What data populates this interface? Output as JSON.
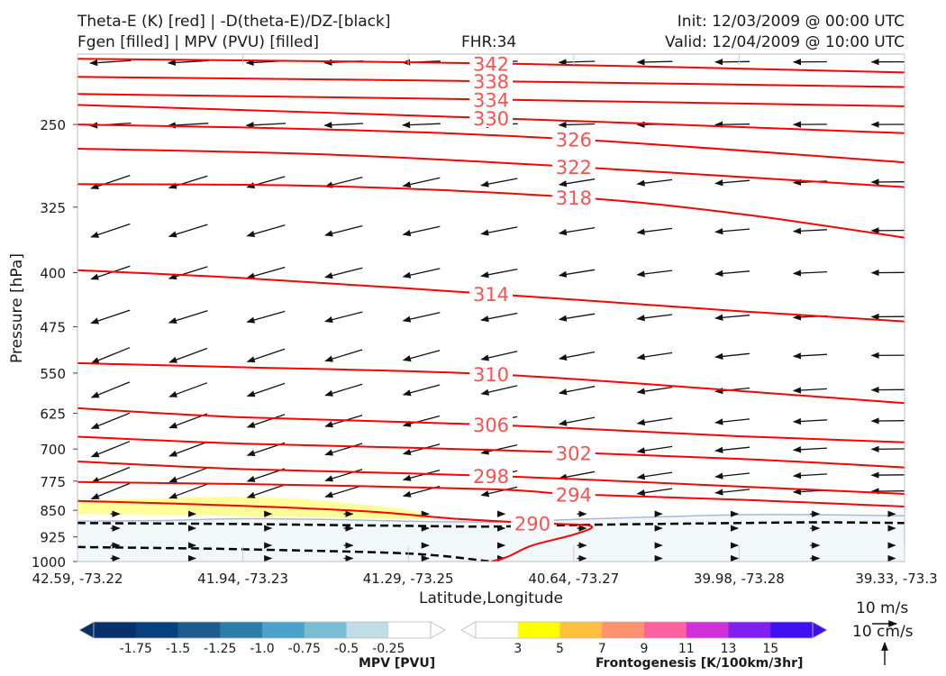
{
  "header": {
    "line1_left": "Theta-E (K) [red] | -D(theta-E)/DZ-[black]",
    "line2_left": "Fgen [filled] | MPV (PVU) [filled]",
    "fhr": "FHR:34",
    "init": "Init: 12/03/2009 @ 00:00 UTC",
    "valid": "Valid: 12/04/2009 @ 10:00 UTC"
  },
  "chart_data": {
    "type": "cross-section",
    "xlabel": "Latitude,Longitude",
    "ylabel": "Pressure [hPa]",
    "y_scale": "log-pressure",
    "ylim": [
      1000,
      200
    ],
    "x_ticks": [
      "42.59, -73.22",
      "41.94, -73.23",
      "41.29, -73.25",
      "40.64, -73.27",
      "39.98, -73.28",
      "39.33, -73.3"
    ],
    "y_ticks": [
      250,
      325,
      400,
      475,
      550,
      625,
      700,
      775,
      850,
      925,
      1000
    ],
    "theta_e_color": "#ff0000",
    "theta_e_contours": [
      {
        "value": "342",
        "pts": [
          [
            0,
            203
          ],
          [
            0.5,
            206
          ],
          [
            1,
            212
          ]
        ],
        "label_x": 0.5
      },
      {
        "value": "338",
        "pts": [
          [
            0,
            215
          ],
          [
            0.5,
            218
          ],
          [
            1,
            222
          ]
        ],
        "label_x": 0.5
      },
      {
        "value": "334",
        "pts": [
          [
            0,
            227
          ],
          [
            0.5,
            231
          ],
          [
            1,
            236
          ]
        ],
        "label_x": 0.5
      },
      {
        "value": "330",
        "pts": [
          [
            0,
            235
          ],
          [
            0.5,
            245
          ],
          [
            1,
            257
          ]
        ],
        "label_x": 0.5
      },
      {
        "value": "326",
        "pts": [
          [
            0,
            250
          ],
          [
            0.3,
            254
          ],
          [
            0.6,
            262
          ],
          [
            1,
            282
          ]
        ],
        "label_x": 0.6
      },
      {
        "value": "322",
        "pts": [
          [
            0,
            270
          ],
          [
            0.3,
            275
          ],
          [
            0.6,
            286
          ],
          [
            1,
            305
          ]
        ],
        "label_x": 0.6
      },
      {
        "value": "318",
        "pts": [
          [
            0,
            302
          ],
          [
            0.3,
            304
          ],
          [
            0.6,
            315
          ],
          [
            0.8,
            332
          ],
          [
            1,
            358
          ]
        ],
        "label_x": 0.6
      },
      {
        "value": "314",
        "pts": [
          [
            0,
            397
          ],
          [
            0.2,
            407
          ],
          [
            0.5,
            428
          ],
          [
            0.8,
            452
          ],
          [
            1,
            467
          ]
        ],
        "label_x": 0.5
      },
      {
        "value": "310",
        "pts": [
          [
            0,
            533
          ],
          [
            0.2,
            540
          ],
          [
            0.5,
            552
          ],
          [
            0.8,
            582
          ],
          [
            1,
            605
          ]
        ],
        "label_x": 0.5
      },
      {
        "value": "306",
        "pts": [
          [
            0,
            615
          ],
          [
            0.2,
            633
          ],
          [
            0.5,
            648
          ],
          [
            0.8,
            672
          ],
          [
            1,
            685
          ]
        ],
        "label_x": 0.5
      },
      {
        "value": "302",
        "pts": [
          [
            0,
            673
          ],
          [
            0.2,
            688
          ],
          [
            0.5,
            702
          ],
          [
            0.8,
            722
          ],
          [
            1,
            742
          ]
        ],
        "label_x": 0.6
      },
      {
        "value": "298",
        "pts": [
          [
            0,
            728
          ],
          [
            0.2,
            746
          ],
          [
            0.5,
            762
          ],
          [
            0.8,
            788
          ],
          [
            1,
            807
          ]
        ],
        "label_x": 0.5
      },
      {
        "value": "294",
        "pts": [
          [
            0,
            777
          ],
          [
            0.2,
            782
          ],
          [
            0.5,
            795
          ],
          [
            0.6,
            808
          ],
          [
            0.8,
            822
          ],
          [
            1,
            840
          ]
        ],
        "label_x": 0.6
      },
      {
        "value": "290",
        "pts": [
          [
            0,
            825
          ],
          [
            0.2,
            838
          ],
          [
            0.35,
            853
          ],
          [
            0.45,
            872
          ],
          [
            0.55,
            885
          ],
          [
            0.62,
            893
          ],
          [
            0.6,
            918
          ],
          [
            0.55,
            950
          ],
          [
            0.52,
            985
          ],
          [
            0.5,
            1000
          ]
        ],
        "label_x": 0.55
      }
    ],
    "stability_dashed_color": "#000000",
    "stability_dashed_contours": [
      [
        [
          0,
          885
        ],
        [
          0.2,
          888
        ],
        [
          0.4,
          893
        ],
        [
          0.5,
          895
        ],
        [
          0.62,
          890
        ],
        [
          0.8,
          885
        ],
        [
          0.9,
          883
        ],
        [
          1,
          885
        ]
      ],
      [
        [
          0,
          955
        ],
        [
          0.1,
          958
        ],
        [
          0.2,
          962
        ],
        [
          0.4,
          975
        ],
        [
          0.5,
          1000
        ]
      ]
    ],
    "mpv_shading": {
      "color": "#f2f8fa",
      "boundary_color": "#a8b8d6",
      "boundary": [
        [
          0,
          880
        ],
        [
          0.1,
          878
        ],
        [
          0.2,
          873
        ],
        [
          0.3,
          875
        ],
        [
          0.4,
          880
        ],
        [
          0.5,
          882
        ],
        [
          0.6,
          875
        ],
        [
          0.7,
          868
        ],
        [
          0.8,
          862
        ],
        [
          0.9,
          862
        ],
        [
          1,
          865
        ]
      ]
    },
    "fgen_shading": {
      "color": "#ffff99",
      "value_range": "3-5",
      "outline": [
        [
          0,
          825
        ],
        [
          0.1,
          818
        ],
        [
          0.2,
          815
        ],
        [
          0.3,
          825
        ],
        [
          0.4,
          850
        ],
        [
          0.42,
          873
        ],
        [
          0.3,
          870
        ],
        [
          0.1,
          862
        ],
        [
          0,
          860
        ]
      ]
    },
    "colorbar_mpv": {
      "label": "MPV [PVU]",
      "tick_labels": [
        "-1.75",
        "-1.5",
        "-1.25",
        "-1.0",
        "-0.75",
        "-0.5",
        "-0.25"
      ],
      "colors": [
        "#08306b",
        "#08417e",
        "#1f5b8c",
        "#2b7fa6",
        "#4aa3c7",
        "#7bbcd3",
        "#c0dde6",
        "#ffffff"
      ]
    },
    "colorbar_fgen": {
      "label": "Frontogenesis [K/100km/3hr]",
      "tick_labels": [
        "3",
        "5",
        "7",
        "9",
        "11",
        "13",
        "15"
      ],
      "colors": [
        "#ffffff",
        "#ffff00",
        "#ffc040",
        "#ff9070",
        "#ff60a0",
        "#d030d8",
        "#8020f0",
        "#4010f0"
      ]
    },
    "wind_reference": {
      "horizontal": "10 m/s",
      "vertical": "10 cm/s"
    }
  }
}
